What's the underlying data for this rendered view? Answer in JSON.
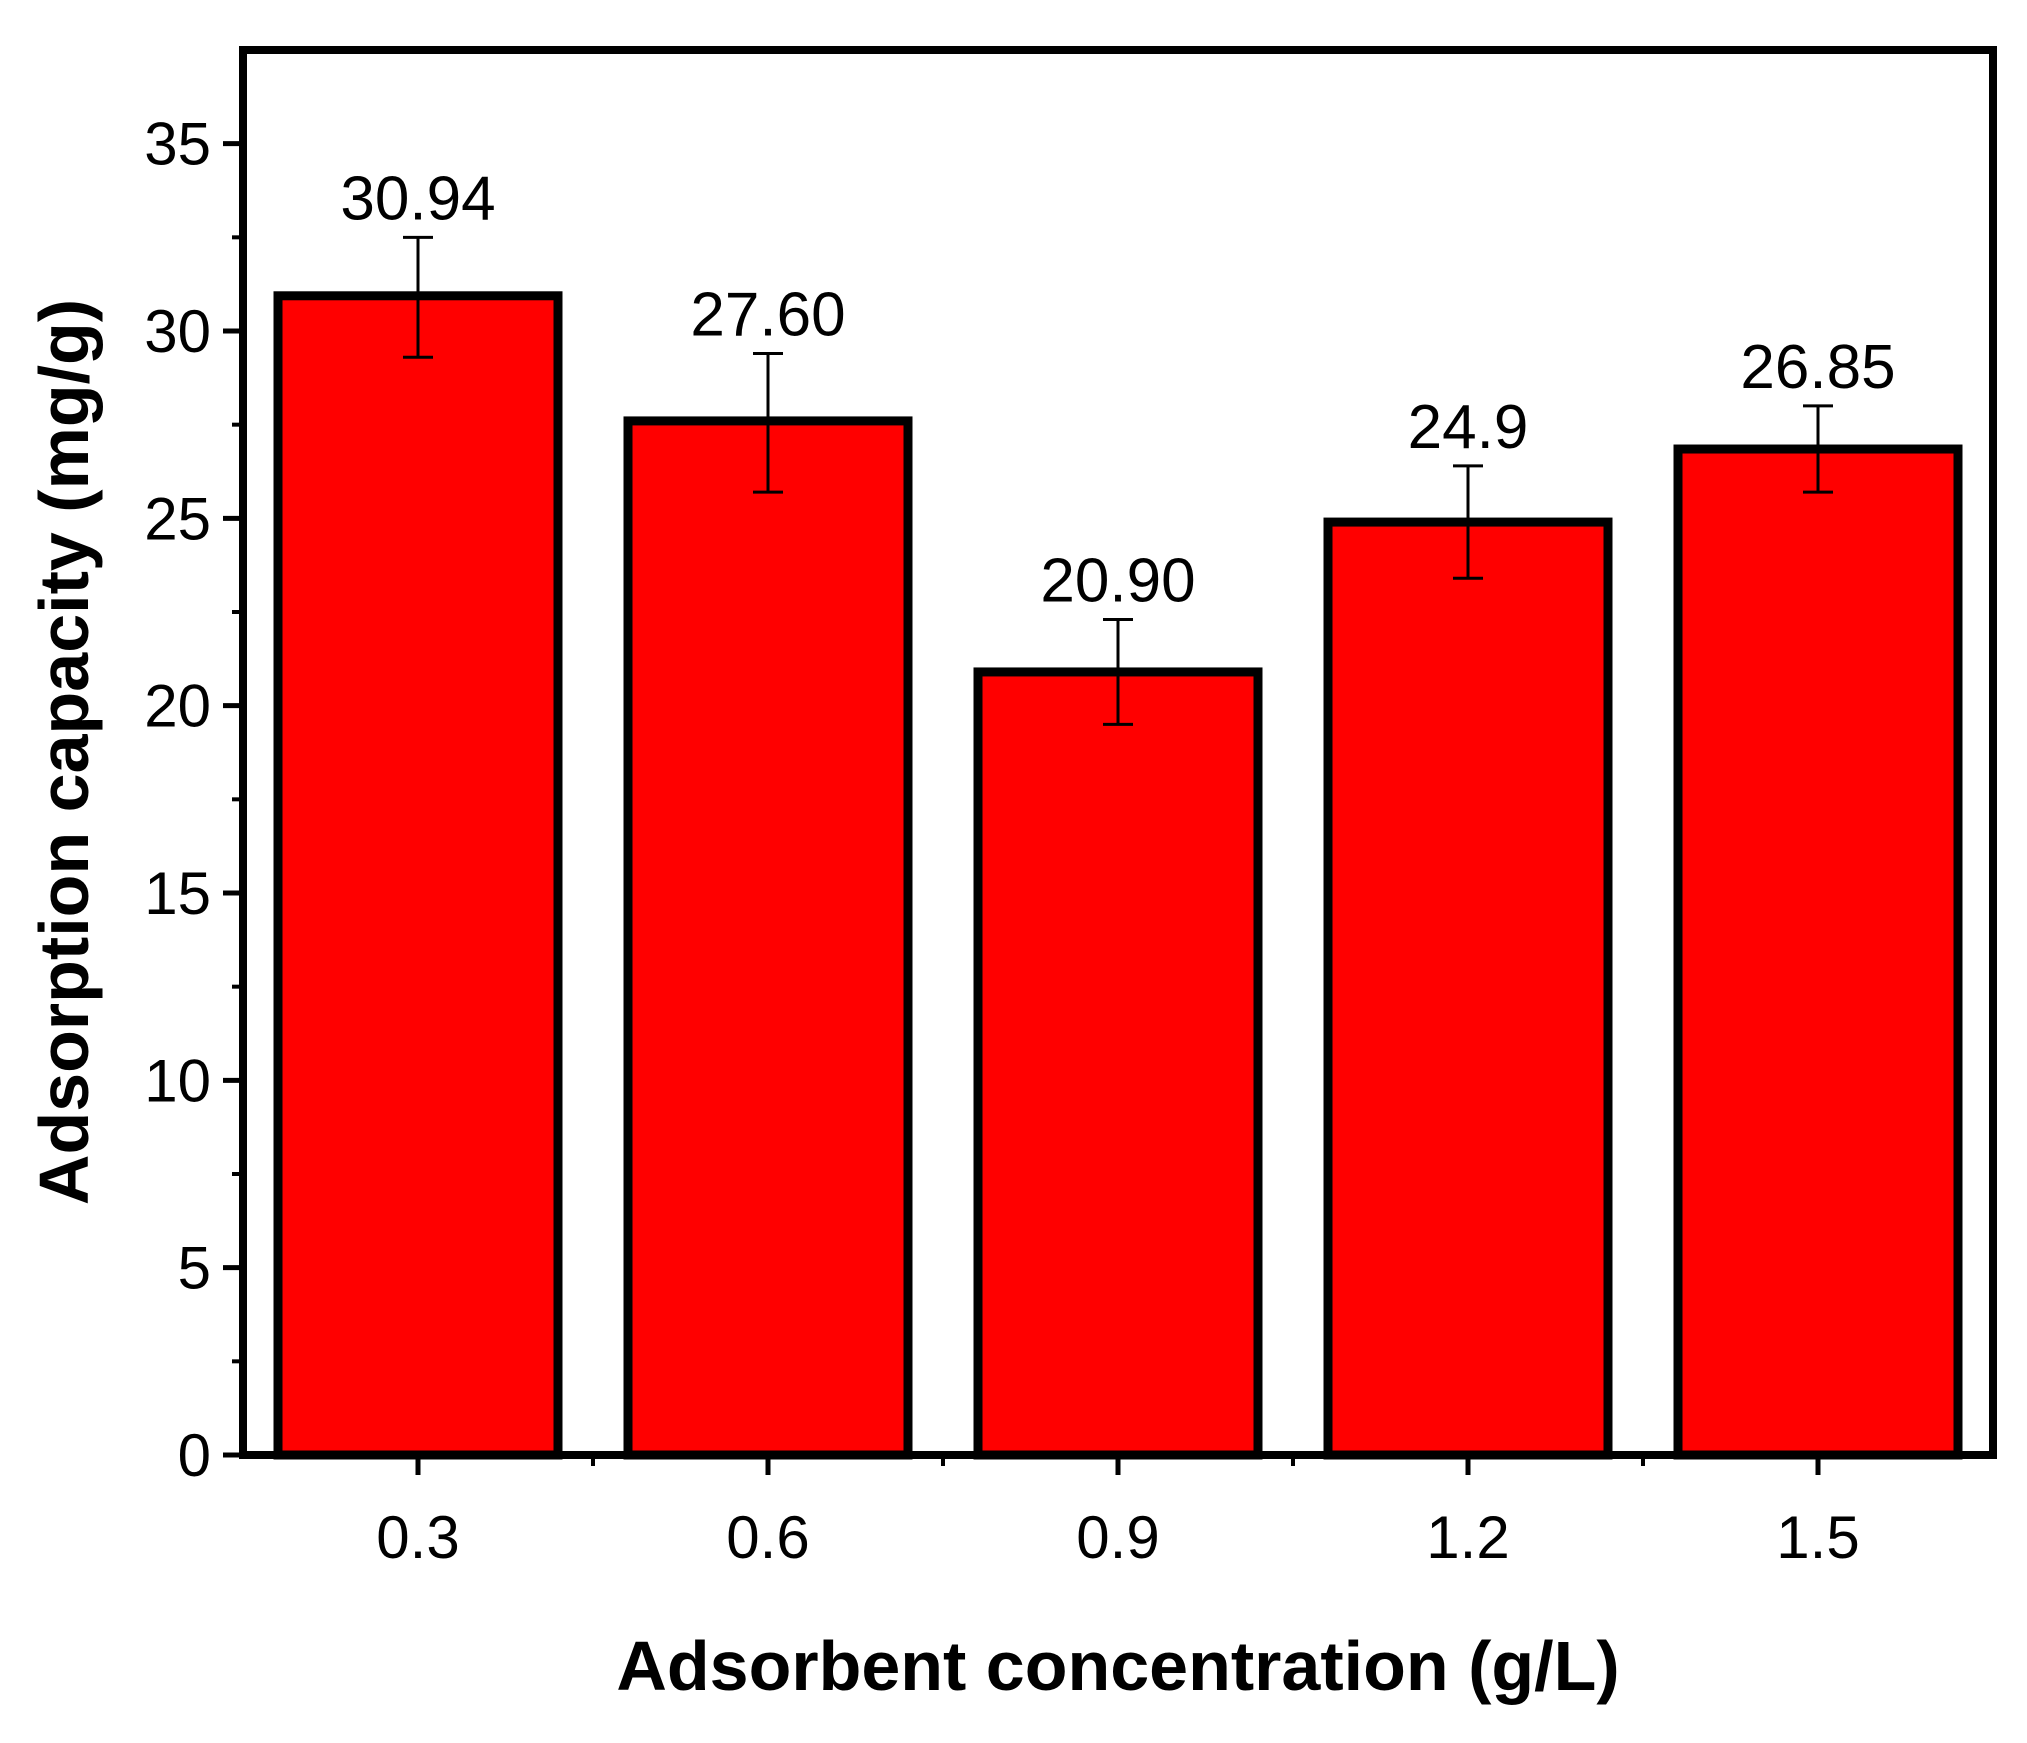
{
  "chart_data": {
    "type": "bar",
    "title": "",
    "xlabel": "Adsorbent concentration (g/L)",
    "ylabel": "Adsorption capacity (mg/g)",
    "categories": [
      "0.3",
      "0.6",
      "0.9",
      "1.2",
      "1.5"
    ],
    "values": [
      30.94,
      27.6,
      20.9,
      24.9,
      26.85
    ],
    "value_labels": [
      "30.94",
      "27.60",
      "20.90",
      "24.9",
      "26.85"
    ],
    "error_low": [
      29.3,
      25.7,
      19.5,
      23.4,
      25.7
    ],
    "error_high": [
      32.5,
      29.4,
      22.3,
      26.4,
      28.0
    ],
    "ylim": [
      0,
      37.5
    ],
    "yticks": [
      0,
      5,
      10,
      15,
      20,
      25,
      30,
      35
    ],
    "ytick_labels": [
      "0",
      "5",
      "10",
      "15",
      "20",
      "25",
      "30",
      "35"
    ],
    "grid": false,
    "legend": "none",
    "bar_color": "#ff0000",
    "edge_color": "#000000"
  }
}
